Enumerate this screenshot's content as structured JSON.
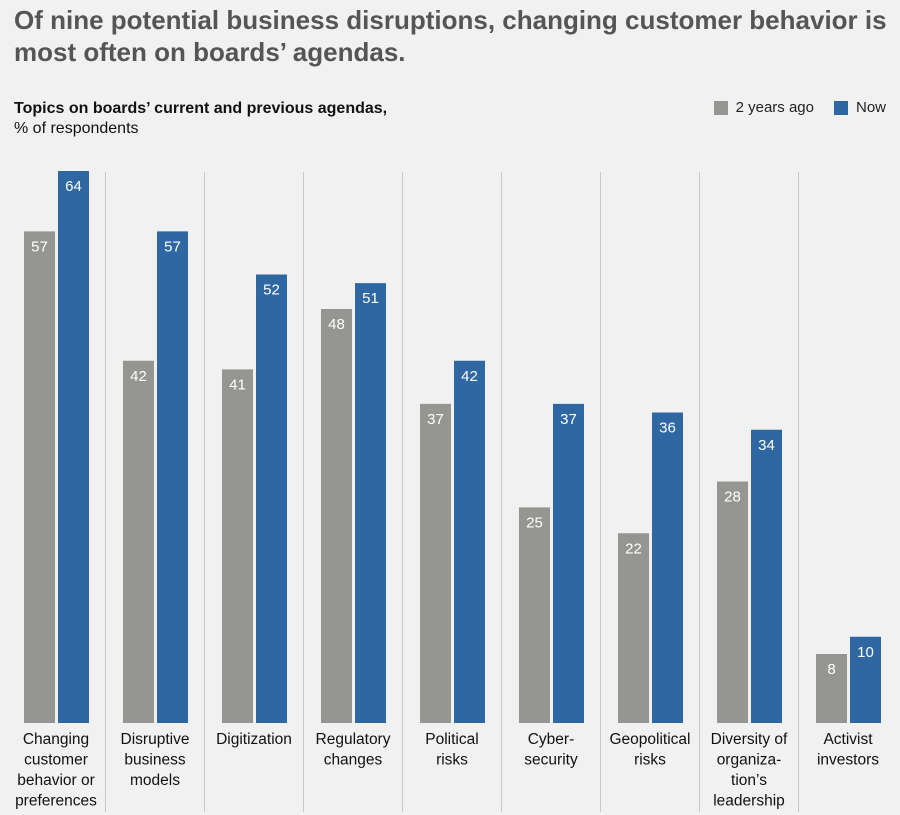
{
  "headline": "Of nine potential business disruptions, changing customer behavior is most often on boards’ agendas.",
  "subtitle_bold": "Topics on boards’ current and previous agendas,",
  "subtitle_unit": "% of respondents",
  "legend": {
    "prev_label": "2 years ago",
    "now_label": "Now"
  },
  "colors": {
    "prev": "#959592",
    "now": "#2e67a2",
    "divider": "#c8c8c8"
  },
  "chart_data": {
    "type": "bar",
    "title": "Topics on boards’ current and previous agendas",
    "ylabel": "% of respondents",
    "xlabel": "",
    "ylim": [
      0,
      64
    ],
    "categories": [
      [
        "Changing",
        "customer",
        "behavior or",
        "preferences"
      ],
      [
        "Disruptive",
        "business",
        "models"
      ],
      [
        "Digitization"
      ],
      [
        "Regulatory",
        "changes"
      ],
      [
        "Political",
        "risks"
      ],
      [
        "Cyber-",
        "security"
      ],
      [
        "Geopolitical",
        "risks"
      ],
      [
        "Diversity of",
        "organiza-",
        "tion’s",
        "leadership"
      ],
      [
        "Activist",
        "investors"
      ]
    ],
    "series": [
      {
        "name": "2 years ago",
        "values": [
          57,
          42,
          41,
          48,
          37,
          25,
          22,
          28,
          8
        ]
      },
      {
        "name": "Now",
        "values": [
          64,
          57,
          52,
          51,
          42,
          37,
          36,
          34,
          10
        ]
      }
    ]
  }
}
